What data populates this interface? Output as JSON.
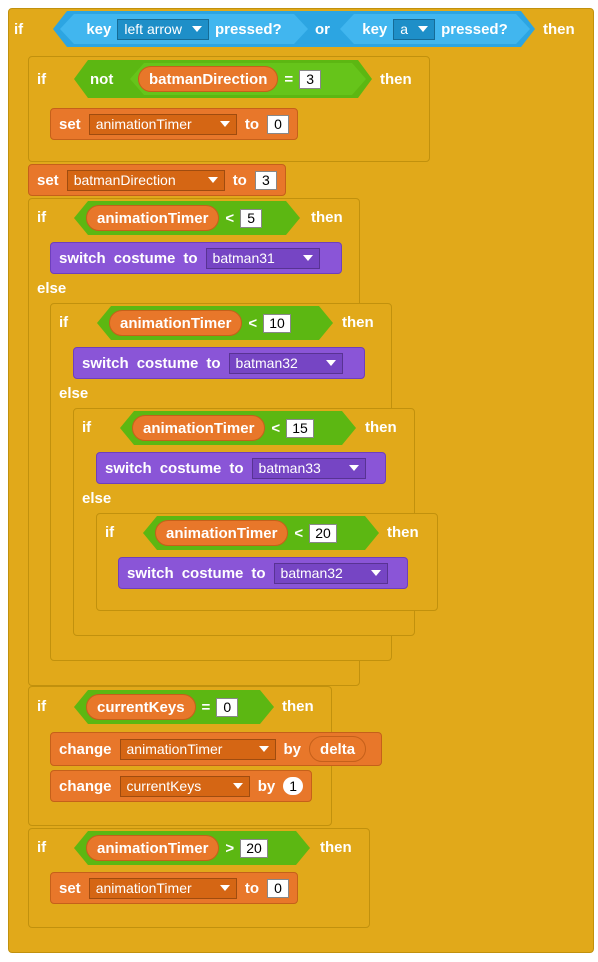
{
  "labels": {
    "if": "if",
    "then": "then",
    "else": "else",
    "or": "or",
    "not": "not",
    "key": "key",
    "pressed": "pressed?",
    "set": "set",
    "to": "to",
    "switch": "switch",
    "costume": "costume",
    "change": "change",
    "by": "by",
    "eq": "=",
    "lt": "<",
    "gt": ">"
  },
  "keys": {
    "left": "left arrow",
    "a": "a"
  },
  "vars": {
    "dir": "batmanDirection",
    "timer": "animationTimer",
    "keys": "currentKeys",
    "delta": "delta"
  },
  "values": {
    "three": "3",
    "zero": "0",
    "five": "5",
    "ten": "10",
    "fifteen": "15",
    "twenty": "20",
    "one": "1"
  },
  "costumes": {
    "c31": "batman31",
    "c32": "batman32",
    "c33": "batman33"
  }
}
